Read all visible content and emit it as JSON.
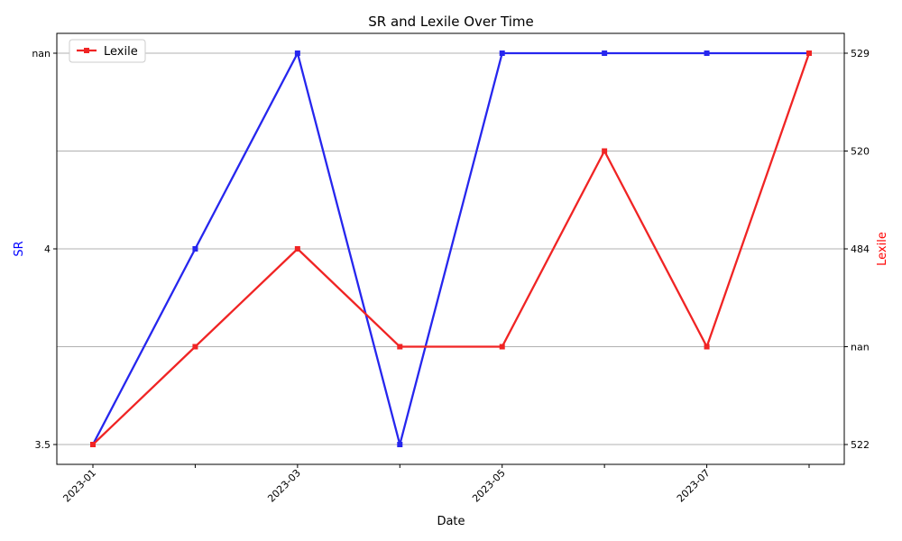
{
  "chart_data": {
    "type": "line",
    "title": "SR and Lexile Over Time",
    "xlabel": "Date",
    "x": [
      "2023-01",
      "2023-02",
      "2023-03",
      "2023-04",
      "2023-05",
      "2023-06",
      "2023-07",
      "2023-08"
    ],
    "x_tick_labels": [
      "2023-01",
      "2023-03",
      "2023-05",
      "2023-07"
    ],
    "x_tick_positions": [
      "2023-01",
      "2023-02",
      "2023-03",
      "2023-04",
      "2023-05",
      "2023-06",
      "2023-07",
      "2023-08"
    ],
    "left_axis": {
      "label": "SR",
      "color": "#0000ff",
      "categories": [
        "3.5",
        "4",
        "nan"
      ]
    },
    "right_axis": {
      "label": "Lexile",
      "color": "#ff0000",
      "categories": [
        "522",
        "nan",
        "484",
        "520",
        "529"
      ]
    },
    "series": [
      {
        "axis": "left",
        "color": "#2626ee",
        "marker": "square",
        "values": [
          "3.5",
          "4",
          "nan",
          "3.5",
          "nan",
          "nan",
          "nan",
          "nan"
        ],
        "positions": [
          0,
          1,
          2,
          0,
          2,
          2,
          2,
          2
        ]
      },
      {
        "name": "Lexile",
        "axis": "right",
        "color": "#f02424",
        "marker": "square",
        "values": [
          "522",
          "nan",
          "484",
          "nan",
          "nan",
          "520",
          "nan",
          "529"
        ],
        "positions": [
          0,
          1,
          2,
          1,
          1,
          3,
          1,
          4
        ]
      }
    ],
    "grid": "horizontal",
    "legend": {
      "position": "upper-left",
      "entries": [
        "Lexile"
      ]
    }
  }
}
